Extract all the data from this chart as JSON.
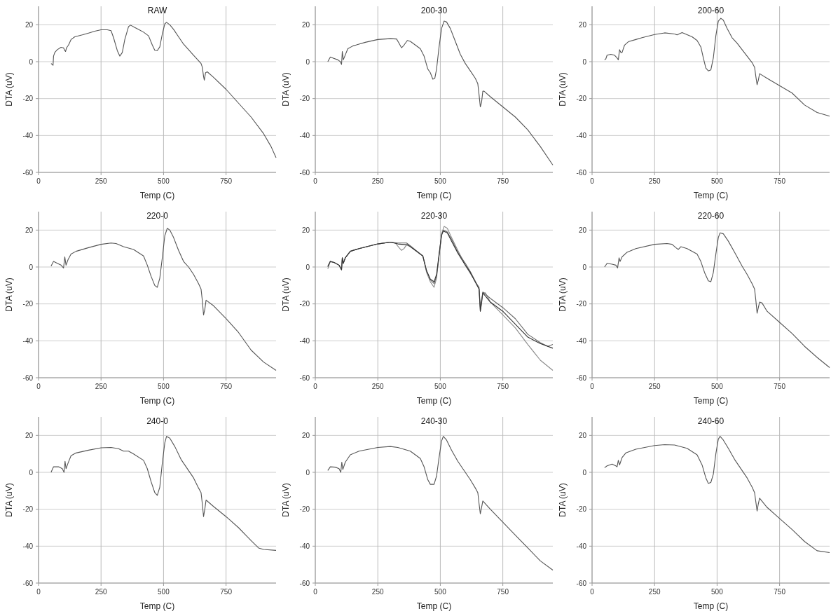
{
  "chart_data": [
    {
      "type": "line",
      "title": "RAW",
      "xlabel": "Temp (C)",
      "ylabel": "DTA (uV)",
      "xlim": [
        0,
        950
      ],
      "ylim": [
        -60,
        30
      ],
      "xticks": [
        0,
        250,
        500,
        750
      ],
      "yticks": [
        -60,
        -40,
        -20,
        0,
        20
      ],
      "grid": true,
      "series": [
        {
          "color": "#555555",
          "x": [
            50,
            55,
            58,
            60,
            65,
            75,
            90,
            100,
            105,
            108,
            112,
            120,
            130,
            145,
            175,
            200,
            225,
            250,
            275,
            290,
            300,
            315,
            325,
            335,
            345,
            360,
            368,
            385,
            400,
            420,
            440,
            455,
            465,
            475,
            485,
            495,
            505,
            512,
            525,
            540,
            560,
            580,
            600,
            620,
            640,
            650,
            655,
            660,
            663,
            668,
            675,
            700,
            750,
            800,
            850,
            900,
            930,
            950
          ],
          "values": [
            -1,
            -1.5,
            -2,
            3,
            5,
            6.5,
            7.8,
            7.5,
            6,
            5.5,
            7.5,
            9,
            12,
            13.5,
            14.5,
            15.5,
            16.5,
            17.3,
            17.3,
            16.8,
            13,
            6,
            3,
            5,
            12,
            19,
            19.8,
            18.5,
            17.5,
            16,
            14,
            9,
            6.2,
            6,
            8,
            15,
            20.5,
            21.3,
            20,
            17.5,
            13.5,
            9.5,
            6.5,
            3.5,
            0.5,
            -1,
            -3,
            -8,
            -10,
            -6,
            -5.5,
            -8.5,
            -15,
            -22.5,
            -30,
            -39,
            -46,
            -52
          ]
        }
      ]
    },
    {
      "type": "line",
      "title": "200-30",
      "xlabel": "Temp (C)",
      "ylabel": "DTA (uV)",
      "xlim": [
        0,
        950
      ],
      "ylim": [
        -60,
        30
      ],
      "xticks": [
        0,
        250,
        500,
        750
      ],
      "yticks": [
        -60,
        -40,
        -20,
        0,
        20
      ],
      "grid": true,
      "series": [
        {
          "color": "#555555",
          "x": [
            50,
            60,
            70,
            90,
            100,
            105,
            108,
            112,
            118,
            130,
            150,
            200,
            250,
            300,
            325,
            335,
            345,
            355,
            368,
            380,
            400,
            420,
            435,
            450,
            460,
            470,
            478,
            485,
            495,
            505,
            515,
            525,
            540,
            560,
            580,
            600,
            620,
            640,
            650,
            655,
            660,
            665,
            670,
            675,
            700,
            750,
            800,
            850,
            900,
            940,
            950
          ],
          "values": [
            0,
            2.5,
            2,
            1,
            0,
            -1.5,
            5.5,
            1,
            3,
            7,
            8.5,
            10.5,
            12,
            12.5,
            12.3,
            10,
            7.5,
            9,
            11.5,
            11,
            9,
            7,
            3,
            -4,
            -6,
            -9.5,
            -9,
            -4,
            8,
            18,
            22,
            21.5,
            18,
            11,
            4,
            -1,
            -5,
            -9,
            -12,
            -18,
            -24.5,
            -22,
            -16,
            -16,
            -19,
            -24.5,
            -30,
            -37,
            -46,
            -54,
            -56
          ]
        }
      ]
    },
    {
      "type": "line",
      "title": "200-60",
      "xlabel": "Temp (C)",
      "ylabel": "DTA (uV)",
      "xlim": [
        0,
        950
      ],
      "ylim": [
        -60,
        30
      ],
      "xticks": [
        0,
        250,
        500,
        750
      ],
      "yticks": [
        -60,
        -40,
        -20,
        0,
        20
      ],
      "grid": true,
      "series": [
        {
          "color": "#555555",
          "x": [
            50,
            55,
            60,
            75,
            90,
            100,
            105,
            110,
            115,
            120,
            130,
            145,
            175,
            200,
            250,
            290,
            330,
            340,
            360,
            400,
            420,
            435,
            445,
            455,
            465,
            475,
            485,
            495,
            505,
            515,
            525,
            540,
            560,
            580,
            600,
            620,
            640,
            650,
            655,
            660,
            665,
            670,
            700,
            750,
            800,
            850,
            900,
            950
          ],
          "values": [
            1,
            1.5,
            3.5,
            4,
            3.5,
            2,
            1,
            6.5,
            5,
            5,
            9,
            10.8,
            12,
            13,
            14.7,
            15.6,
            15,
            14.5,
            15.8,
            13.5,
            11.5,
            8,
            2,
            -3.5,
            -5,
            -4.5,
            2,
            14,
            22,
            23.5,
            22.5,
            18,
            13,
            10,
            6.5,
            3,
            -0.5,
            -3,
            -8,
            -12.5,
            -10,
            -6.5,
            -9,
            -13,
            -17,
            -23.5,
            -27.5,
            -29.5
          ]
        }
      ]
    },
    {
      "type": "line",
      "title": "220-0",
      "xlabel": "Temp (C)",
      "ylabel": "DTA (uV)",
      "xlim": [
        0,
        950
      ],
      "ylim": [
        -60,
        30
      ],
      "xticks": [
        0,
        250,
        500,
        750
      ],
      "yticks": [
        -60,
        -40,
        -20,
        0,
        20
      ],
      "grid": true,
      "series": [
        {
          "color": "#555555",
          "x": [
            50,
            60,
            75,
            90,
            100,
            105,
            110,
            118,
            130,
            150,
            200,
            250,
            290,
            310,
            340,
            380,
            420,
            435,
            450,
            465,
            475,
            485,
            495,
            505,
            515,
            525,
            540,
            560,
            580,
            600,
            620,
            640,
            650,
            655,
            660,
            665,
            670,
            700,
            750,
            800,
            850,
            900,
            950
          ],
          "values": [
            0.5,
            3,
            2,
            1,
            -0.5,
            5.5,
            1,
            4,
            7,
            8.5,
            10.5,
            12.3,
            13,
            12.7,
            11,
            9.5,
            6,
            1,
            -5,
            -10,
            -11,
            -6,
            5,
            17,
            21,
            20,
            16,
            9,
            3,
            0,
            -4,
            -9,
            -12,
            -18,
            -26,
            -23,
            -18,
            -21,
            -28,
            -35.5,
            -45,
            -51.5,
            -56
          ]
        }
      ]
    },
    {
      "type": "line",
      "title": "220-30",
      "xlabel": "Temp (C)",
      "ylabel": "DTA (uV)",
      "xlim": [
        0,
        950
      ],
      "ylim": [
        -60,
        30
      ],
      "xticks": [
        0,
        250,
        500,
        750
      ],
      "yticks": [
        -60,
        -40,
        -20,
        0,
        20
      ],
      "grid": true,
      "series": [
        {
          "color": "#8a8a8a",
          "x": [
            50,
            60,
            75,
            95,
            105,
            108,
            112,
            120,
            140,
            175,
            250,
            300,
            320,
            335,
            345,
            355,
            365,
            380,
            430,
            445,
            460,
            475,
            485,
            495,
            505,
            515,
            528,
            545,
            570,
            600,
            620,
            645,
            655,
            660,
            665,
            670,
            680,
            700,
            750,
            800,
            850,
            900,
            950
          ],
          "values": [
            -1,
            3,
            2.5,
            1,
            -1.5,
            5,
            2,
            5,
            8.5,
            10,
            12.5,
            13.5,
            13,
            10.5,
            9,
            10,
            12,
            11,
            6,
            -3,
            -8,
            -11,
            -6,
            6,
            18,
            22,
            21,
            16,
            9,
            1,
            -3.5,
            -9,
            -12,
            -24,
            -20,
            -14,
            -14,
            -19,
            -26,
            -33,
            -42,
            -50.5,
            -56
          ]
        },
        {
          "color": "#666666",
          "x": [
            50,
            60,
            75,
            95,
            105,
            108,
            112,
            120,
            140,
            175,
            250,
            300,
            330,
            365,
            380,
            430,
            445,
            460,
            475,
            485,
            495,
            505,
            512,
            528,
            545,
            570,
            600,
            620,
            645,
            655,
            660,
            665,
            670,
            700,
            750,
            800,
            850,
            900,
            930,
            950
          ],
          "values": [
            0,
            3,
            2.5,
            1,
            -1.5,
            5,
            2,
            5,
            8.5,
            10,
            12.5,
            13.5,
            13,
            13,
            11.5,
            6,
            -2,
            -7,
            -9,
            -5,
            6,
            17,
            20,
            19,
            15,
            8,
            2,
            -2.5,
            -9,
            -11,
            -22,
            -18,
            -13.5,
            -17,
            -22,
            -28,
            -36.5,
            -41,
            -43,
            -42
          ]
        },
        {
          "color": "#333333",
          "x": [
            50,
            60,
            75,
            95,
            105,
            108,
            112,
            120,
            140,
            175,
            250,
            300,
            330,
            370,
            430,
            445,
            460,
            475,
            485,
            495,
            505,
            512,
            528,
            545,
            570,
            600,
            620,
            645,
            655,
            660,
            665,
            670,
            700,
            750,
            800,
            850,
            900,
            950
          ],
          "values": [
            0.5,
            3,
            2.5,
            1,
            -1.5,
            5,
            2,
            5,
            8.5,
            10,
            12.5,
            13.5,
            12.5,
            12,
            6,
            -2,
            -6.5,
            -8,
            -4,
            7,
            17.5,
            19.5,
            18.5,
            14,
            7.5,
            1,
            -3,
            -9.5,
            -12,
            -24,
            -19,
            -14,
            -19,
            -24,
            -31,
            -38,
            -41.5,
            -44
          ]
        }
      ]
    },
    {
      "type": "line",
      "title": "220-60",
      "xlabel": "Temp (C)",
      "ylabel": "DTA (uV)",
      "xlim": [
        0,
        950
      ],
      "ylim": [
        -60,
        30
      ],
      "xticks": [
        0,
        250,
        500,
        750
      ],
      "yticks": [
        -60,
        -40,
        -20,
        0,
        20
      ],
      "grid": true,
      "series": [
        {
          "color": "#555555",
          "x": [
            50,
            60,
            80,
            95,
            102,
            108,
            112,
            120,
            140,
            175,
            250,
            300,
            320,
            335,
            345,
            355,
            380,
            420,
            435,
            450,
            465,
            475,
            485,
            495,
            505,
            512,
            525,
            545,
            570,
            600,
            620,
            640,
            650,
            655,
            660,
            665,
            670,
            680,
            700,
            750,
            800,
            850,
            900,
            950
          ],
          "values": [
            0,
            2,
            1.5,
            1,
            -0.5,
            5,
            3,
            5.5,
            8,
            10,
            12.3,
            12.7,
            12.3,
            10.5,
            9.5,
            11,
            10,
            7,
            3,
            -3,
            -7.5,
            -8,
            -3,
            7,
            16,
            18.5,
            18,
            14,
            8,
            0.5,
            -4,
            -9,
            -12,
            -18,
            -25,
            -22,
            -19,
            -19.5,
            -24,
            -30,
            -36,
            -43,
            -49,
            -54.5
          ]
        }
      ]
    },
    {
      "type": "line",
      "title": "240-0",
      "xlabel": "Temp (C)",
      "ylabel": "DTA (uV)",
      "xlim": [
        0,
        950
      ],
      "ylim": [
        -60,
        30
      ],
      "xticks": [
        0,
        250,
        500,
        750
      ],
      "yticks": [
        -60,
        -40,
        -20,
        0,
        20
      ],
      "grid": true,
      "series": [
        {
          "color": "#555555",
          "x": [
            50,
            60,
            80,
            95,
            102,
            106,
            110,
            118,
            130,
            150,
            200,
            250,
            290,
            320,
            340,
            360,
            380,
            420,
            435,
            450,
            465,
            475,
            485,
            495,
            505,
            512,
            525,
            545,
            570,
            600,
            620,
            640,
            650,
            655,
            660,
            665,
            670,
            700,
            750,
            800,
            850,
            880,
            900,
            950
          ],
          "values": [
            0,
            3,
            3,
            2,
            0,
            6,
            2,
            5,
            9,
            10.5,
            12,
            13.3,
            13.5,
            12.8,
            11.5,
            11.5,
            10,
            6.5,
            2,
            -5,
            -11,
            -12.5,
            -8,
            5,
            16,
            19.5,
            18.5,
            14,
            7,
            1,
            -3,
            -8.5,
            -11,
            -17,
            -24,
            -20,
            -15,
            -18.5,
            -24,
            -30,
            -37,
            -41,
            -41.8,
            -42.3
          ]
        }
      ]
    },
    {
      "type": "line",
      "title": "240-30",
      "xlabel": "Temp (C)",
      "ylabel": "DTA (uV)",
      "xlim": [
        0,
        950
      ],
      "ylim": [
        -60,
        30
      ],
      "xticks": [
        0,
        250,
        500,
        750
      ],
      "yticks": [
        -60,
        -40,
        -20,
        0,
        20
      ],
      "grid": true,
      "series": [
        {
          "color": "#555555",
          "x": [
            50,
            60,
            80,
            95,
            102,
            106,
            110,
            120,
            140,
            175,
            250,
            300,
            330,
            380,
            420,
            435,
            450,
            460,
            475,
            485,
            495,
            505,
            512,
            525,
            545,
            570,
            600,
            620,
            640,
            650,
            655,
            660,
            665,
            670,
            700,
            750,
            800,
            850,
            900,
            950
          ],
          "values": [
            1,
            3,
            2.8,
            2,
            0,
            5.5,
            1.5,
            5.5,
            9.5,
            11.5,
            13.5,
            14,
            13.5,
            11.5,
            7.5,
            3,
            -4,
            -6.5,
            -6.5,
            -2,
            8,
            17,
            19.5,
            17.5,
            12,
            6,
            0,
            -4,
            -8.5,
            -11,
            -17,
            -22.5,
            -19,
            -15.5,
            -20,
            -27,
            -34,
            -41,
            -48,
            -53
          ]
        }
      ]
    },
    {
      "type": "line",
      "title": "240-60",
      "xlabel": "Temp (C)",
      "ylabel": "DTA (uV)",
      "xlim": [
        0,
        950
      ],
      "ylim": [
        -60,
        30
      ],
      "xticks": [
        0,
        250,
        500,
        750
      ],
      "yticks": [
        -60,
        -40,
        -20,
        0,
        20
      ],
      "grid": true,
      "series": [
        {
          "color": "#555555",
          "x": [
            50,
            60,
            80,
            95,
            100,
            105,
            110,
            120,
            135,
            175,
            250,
            290,
            330,
            380,
            420,
            440,
            455,
            465,
            475,
            485,
            495,
            505,
            512,
            525,
            545,
            570,
            600,
            620,
            640,
            650,
            655,
            660,
            665,
            670,
            700,
            750,
            800,
            850,
            900,
            950
          ],
          "values": [
            2.5,
            3.5,
            4.5,
            3.5,
            3,
            6.5,
            4,
            8,
            10.5,
            12.5,
            14.5,
            15,
            14.8,
            13,
            9.5,
            4,
            -3,
            -6,
            -5.5,
            -1,
            10,
            18,
            19.5,
            17.5,
            13,
            7,
            1,
            -3,
            -8,
            -11,
            -16,
            -21,
            -17,
            -14,
            -19,
            -25,
            -31,
            -37.5,
            -42.5,
            -43.5
          ]
        }
      ]
    }
  ]
}
